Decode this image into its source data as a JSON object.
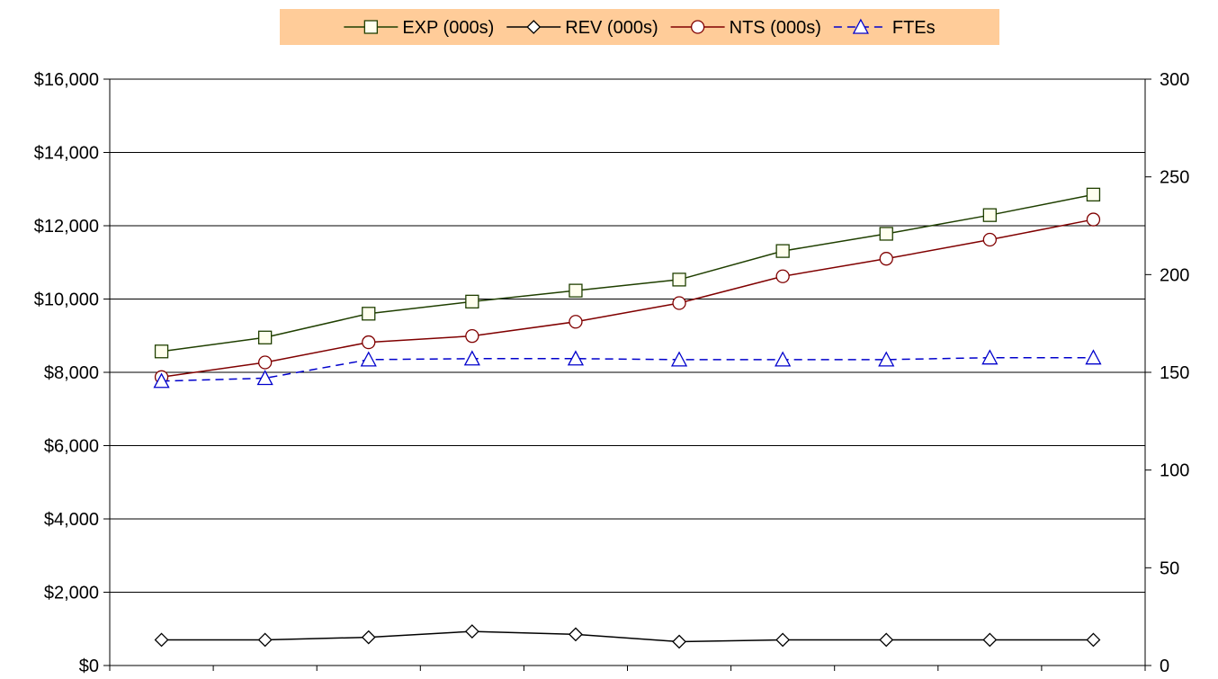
{
  "chart_data": {
    "type": "line",
    "title": "",
    "xlabel": "",
    "ylabel": "",
    "x": [
      1,
      2,
      3,
      4,
      5,
      6,
      7,
      8,
      9,
      10
    ],
    "ylim": [
      0,
      16000
    ],
    "y2lim": [
      0,
      300
    ],
    "y_ticks": [
      0,
      2000,
      4000,
      6000,
      8000,
      10000,
      12000,
      14000,
      16000
    ],
    "y_tick_labels": [
      "$0",
      "$2,000",
      "$4,000",
      "$6,000",
      "$8,000",
      "$10,000",
      "$12,000",
      "$14,000",
      "$16,000"
    ],
    "y2_ticks": [
      0,
      50,
      100,
      150,
      200,
      250,
      300
    ],
    "y2_tick_labels": [
      "0",
      "50",
      "100",
      "150",
      "200",
      "250",
      "300"
    ],
    "grid": "horizontal",
    "legend_position": "top-center",
    "legend_background": "#FFCC99",
    "series": [
      {
        "name": "EXP (000s)",
        "axis": "left",
        "marker": "square",
        "color": "#1F3F00",
        "marker_fill": "#FFFFEE",
        "dashed": false,
        "values": [
          8570,
          8950,
          9600,
          9930,
          10230,
          10530,
          11310,
          11780,
          12290,
          12850
        ]
      },
      {
        "name": "REV (000s)",
        "axis": "left",
        "marker": "diamond",
        "color": "#000000",
        "marker_fill": "#FFFFFF",
        "dashed": false,
        "values": [
          700,
          700,
          770,
          930,
          850,
          650,
          700,
          700,
          700,
          700
        ]
      },
      {
        "name": "NTS (000s)",
        "axis": "left",
        "marker": "circle",
        "color": "#800000",
        "marker_fill": "#FFFFFF",
        "dashed": false,
        "values": [
          7870,
          8270,
          8820,
          8990,
          9380,
          9890,
          10620,
          11100,
          11620,
          12170
        ]
      },
      {
        "name": "FTEs",
        "axis": "right",
        "marker": "triangle",
        "color": "#0000CC",
        "marker_fill": "#FFFFFF",
        "dashed": true,
        "values": [
          145.5,
          147,
          156.5,
          157,
          157,
          156.5,
          156.5,
          156.5,
          157.5,
          157.5
        ]
      }
    ]
  }
}
